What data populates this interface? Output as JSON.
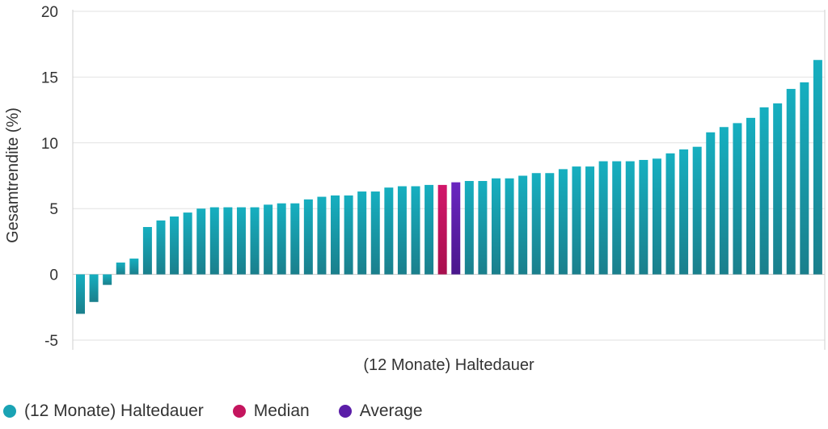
{
  "chart_data": {
    "type": "bar",
    "title": "",
    "xlabel": "(12 Monate) Haltedauer",
    "ylabel": "Gesamtrendite (%)",
    "ylim": [
      -5,
      20
    ],
    "yticks": [
      -5,
      0,
      5,
      10,
      15,
      20
    ],
    "grid": true,
    "legend_position": "bottom-left",
    "series": [
      {
        "name": "(12 Monate) Haltedauer",
        "color": "#1aa3b4",
        "values": [
          -3.0,
          -2.1,
          -0.8,
          0.9,
          1.2,
          3.6,
          4.1,
          4.4,
          4.7,
          5.0,
          5.1,
          5.1,
          5.1,
          5.1,
          5.3,
          5.4,
          5.4,
          5.7,
          5.9,
          6.0,
          6.0,
          6.3,
          6.3,
          6.6,
          6.7,
          6.7,
          6.8,
          6.8,
          7.0,
          7.1,
          7.1,
          7.3,
          7.3,
          7.5,
          7.7,
          7.7,
          8.0,
          8.2,
          8.2,
          8.6,
          8.6,
          8.6,
          8.7,
          8.8,
          9.2,
          9.5,
          9.7,
          10.8,
          11.2,
          11.5,
          11.9,
          12.7,
          13.0,
          14.1,
          14.6,
          16.3
        ]
      }
    ],
    "highlights": [
      {
        "name": "Median",
        "index": 27,
        "color": "#c4155e"
      },
      {
        "name": "Average",
        "index": 28,
        "color": "#5b1ea8"
      }
    ]
  },
  "legend": [
    {
      "label": "(12 Monate) Haltedauer",
      "color": "#1aa3b4"
    },
    {
      "label": "Median",
      "color": "#c4155e"
    },
    {
      "label": "Average",
      "color": "#5b1ea8"
    }
  ]
}
